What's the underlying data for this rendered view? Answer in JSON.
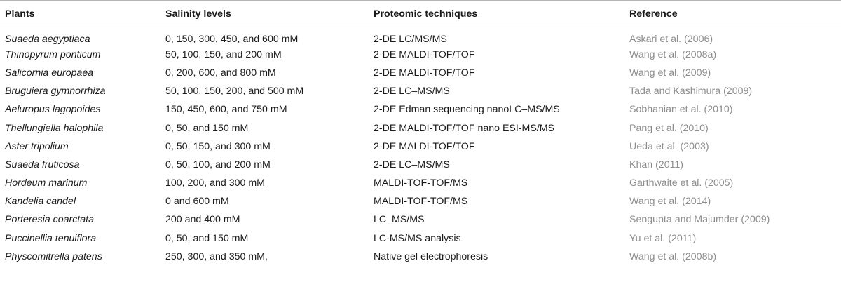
{
  "table": {
    "headers": {
      "plants": "Plants",
      "salinity": "Salinity levels",
      "techniques": "Proteomic techniques",
      "reference": "Reference"
    },
    "rows": [
      {
        "plant": "Suaeda aegyptiaca",
        "salinity": "0, 150, 300, 450, and 600 mM",
        "technique": "2-DE LC/MS/MS",
        "reference": "Askari et al. (2006)"
      },
      {
        "plant": "Thinopyrum ponticum",
        "salinity": "50, 100, 150, and 200 mM",
        "technique": "2-DE MALDI-TOF/TOF",
        "reference": "Wang et al. (2008a)"
      },
      {
        "plant": "Salicornia europaea",
        "salinity": "0, 200, 600, and 800 mM",
        "technique": "2-DE MALDI-TOF/TOF",
        "reference": "Wang et al. (2009)"
      },
      {
        "plant": "Bruguiera gymnorrhiza",
        "salinity": "50, 100, 150, 200, and 500 mM",
        "technique": "2-DE LC–MS/MS",
        "reference": "Tada and Kashimura (2009)"
      },
      {
        "plant": "Aeluropus lagopoides",
        "salinity": "150, 450, 600, and 750 mM",
        "technique": "2-DE Edman sequencing nanoLC–MS/MS",
        "reference": "Sobhanian et al. (2010)"
      },
      {
        "plant": "Thellungiella halophila",
        "salinity": "0, 50, and 150 mM",
        "technique": "2-DE MALDI-TOF/TOF nano ESI-MS/MS",
        "reference": "Pang et al. (2010)"
      },
      {
        "plant": "Aster tripolium",
        "salinity": "0, 50, 150, and 300 mM",
        "technique": "2-DE MALDI-TOF/TOF",
        "reference": "Ueda et al. (2003)"
      },
      {
        "plant": "Suaeda fruticosa",
        "salinity": "0, 50, 100, and 200 mM",
        "technique": "2-DE LC–MS/MS",
        "reference": "Khan (2011)"
      },
      {
        "plant": "Hordeum marinum",
        "salinity": "100, 200, and 300 mM",
        "technique": "MALDI-TOF-TOF/MS",
        "reference": "Garthwaite et al. (2005)"
      },
      {
        "plant": "Kandelia candel",
        "salinity": "0 and 600 mM",
        "technique": "MALDI-TOF-TOF/MS",
        "reference": "Wang et al. (2014)"
      },
      {
        "plant": "Porteresia coarctata",
        "salinity": "200 and 400 mM",
        "technique": "LC–MS/MS",
        "reference": "Sengupta and Majumder (2009)"
      },
      {
        "plant": "Puccinellia tenuiflora",
        "salinity": "0, 50, and 150 mM",
        "technique": "LC-MS/MS analysis",
        "reference": "Yu et al. (2011)"
      },
      {
        "plant": "Physcomitrella patens",
        "salinity": "250, 300, and 350 mM,",
        "technique": "Native gel electrophoresis",
        "reference": "Wang et al. (2008b)"
      }
    ]
  }
}
